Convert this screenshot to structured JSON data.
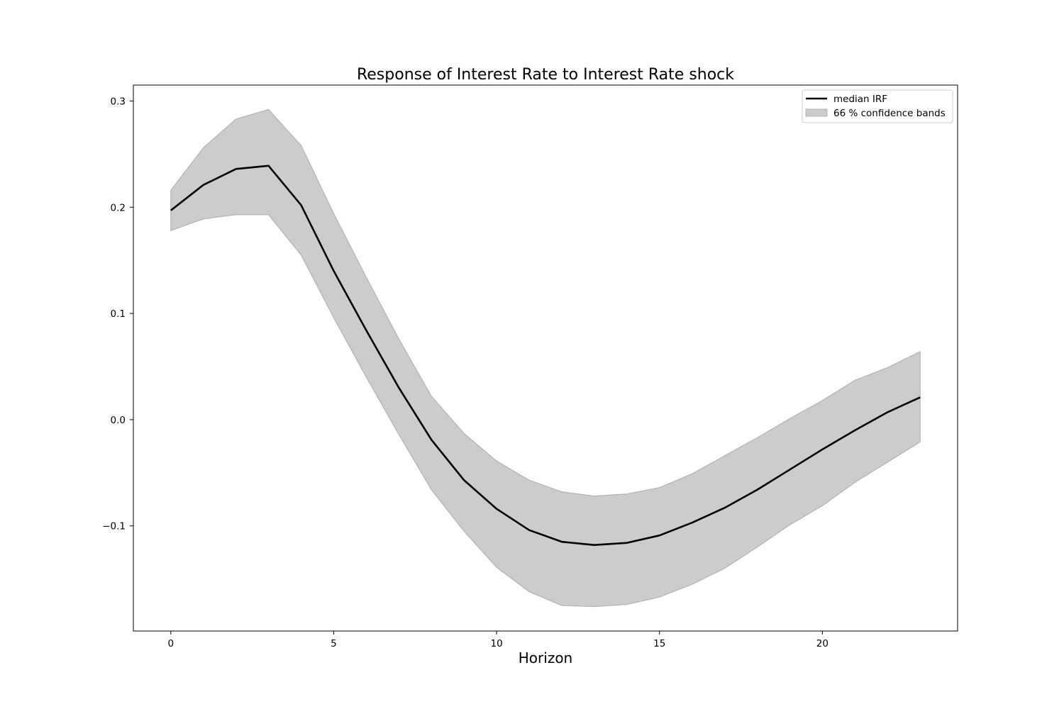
{
  "chart_data": {
    "type": "line",
    "title": "Response of Interest Rate to Interest Rate shock",
    "xlabel": "Horizon",
    "ylabel": "",
    "xlim": [
      -1.15,
      24.15
    ],
    "ylim": [
      -0.199,
      0.315
    ],
    "xticks": [
      0,
      5,
      10,
      15,
      20
    ],
    "xtick_labels": [
      "0",
      "5",
      "10",
      "15",
      "20"
    ],
    "yticks": [
      -0.1,
      0.0,
      0.1,
      0.2,
      0.3
    ],
    "ytick_labels": [
      "−0.1",
      "0.0",
      "0.1",
      "0.2",
      "0.3"
    ],
    "grid": false,
    "legend_position": "top-right",
    "x": [
      0,
      1,
      2,
      3,
      4,
      5,
      6,
      7,
      8,
      9,
      10,
      11,
      12,
      13,
      14,
      15,
      16,
      17,
      18,
      19,
      20,
      21,
      22,
      23
    ],
    "series": [
      {
        "name": "median IRF",
        "kind": "line",
        "color": "#000000",
        "values": [
          0.197,
          0.221,
          0.236,
          0.239,
          0.202,
          0.14,
          0.084,
          0.03,
          -0.019,
          -0.057,
          -0.084,
          -0.104,
          -0.115,
          -0.118,
          -0.116,
          -0.109,
          -0.097,
          -0.083,
          -0.066,
          -0.047,
          -0.028,
          -0.01,
          0.007,
          0.021
        ]
      },
      {
        "name": "66 % confidence bands",
        "kind": "band",
        "color": "#cccccc",
        "edge_color": "#b3b3b3",
        "lower": [
          0.178,
          0.189,
          0.193,
          0.193,
          0.155,
          0.096,
          0.04,
          -0.014,
          -0.066,
          -0.105,
          -0.139,
          -0.162,
          -0.175,
          -0.176,
          -0.174,
          -0.167,
          -0.155,
          -0.14,
          -0.12,
          -0.099,
          -0.081,
          -0.059,
          -0.04,
          -0.021
        ],
        "upper": [
          0.216,
          0.256,
          0.283,
          0.292,
          0.258,
          0.194,
          0.134,
          0.076,
          0.022,
          -0.013,
          -0.039,
          -0.057,
          -0.068,
          -0.072,
          -0.07,
          -0.064,
          -0.051,
          -0.034,
          -0.017,
          0.001,
          0.018,
          0.037,
          0.049,
          0.064
        ]
      }
    ]
  }
}
